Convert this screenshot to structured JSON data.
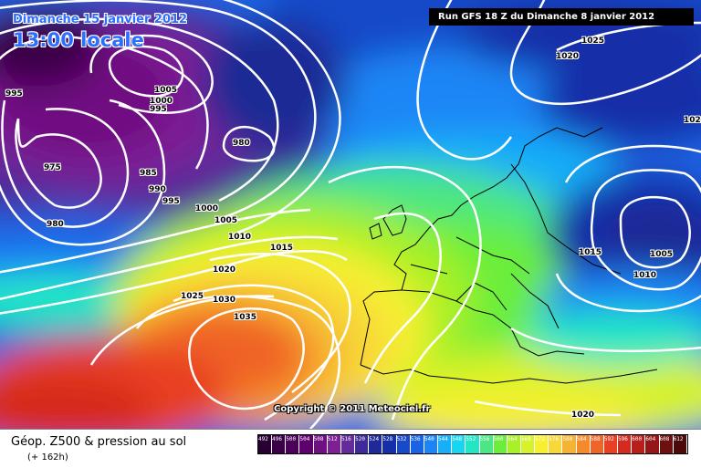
{
  "header": {
    "date": "Dimanche 15 janvier 2012",
    "local_time": "13:00 locale",
    "run_info": "Run GFS 18 Z du Dimanche 8 janvier 2012"
  },
  "copyright": "Copyright © 2011 Meteociel.fr",
  "footer": {
    "product_title": "Géop. Z500 & pression au sol",
    "lead_time": "(+ 162h)"
  },
  "isobar_labels": [
    "995",
    "1005",
    "1000",
    "995",
    "980",
    "975",
    "985",
    "990",
    "995",
    "980",
    "1000",
    "1005",
    "1010",
    "1015",
    "1020",
    "1025",
    "1030",
    "1035",
    "1025",
    "1020",
    "1015",
    "1005",
    "1010",
    "1020",
    "102"
  ],
  "legend": {
    "values": [
      "492",
      "496",
      "500",
      "504",
      "508",
      "512",
      "516",
      "520",
      "524",
      "528",
      "532",
      "536",
      "540",
      "544",
      "548",
      "552",
      "556",
      "560",
      "564",
      "568",
      "572",
      "576",
      "580",
      "584",
      "588",
      "592",
      "596",
      "600",
      "604",
      "608",
      "612"
    ],
    "colors": [
      "#2a0033",
      "#3a0047",
      "#4b0059",
      "#5e006d",
      "#6f1081",
      "#7e1f95",
      "#642c9a",
      "#3e2a99",
      "#1e2a95",
      "#152fa8",
      "#1849c8",
      "#1a64e4",
      "#1a86f6",
      "#19aef8",
      "#17d6f2",
      "#24e6c4",
      "#4ce684",
      "#6aee3a",
      "#a8f028",
      "#d6f228",
      "#f6f030",
      "#f8d838",
      "#f6b232",
      "#f48a2c",
      "#f06426",
      "#e84022",
      "#d62a1e",
      "#b81e1a",
      "#941616",
      "#6e1010",
      "#4a0a0a"
    ]
  },
  "colors": {
    "title_blue": "#2a6fff",
    "isobar": "#ffffff",
    "coastline": "#000000"
  }
}
